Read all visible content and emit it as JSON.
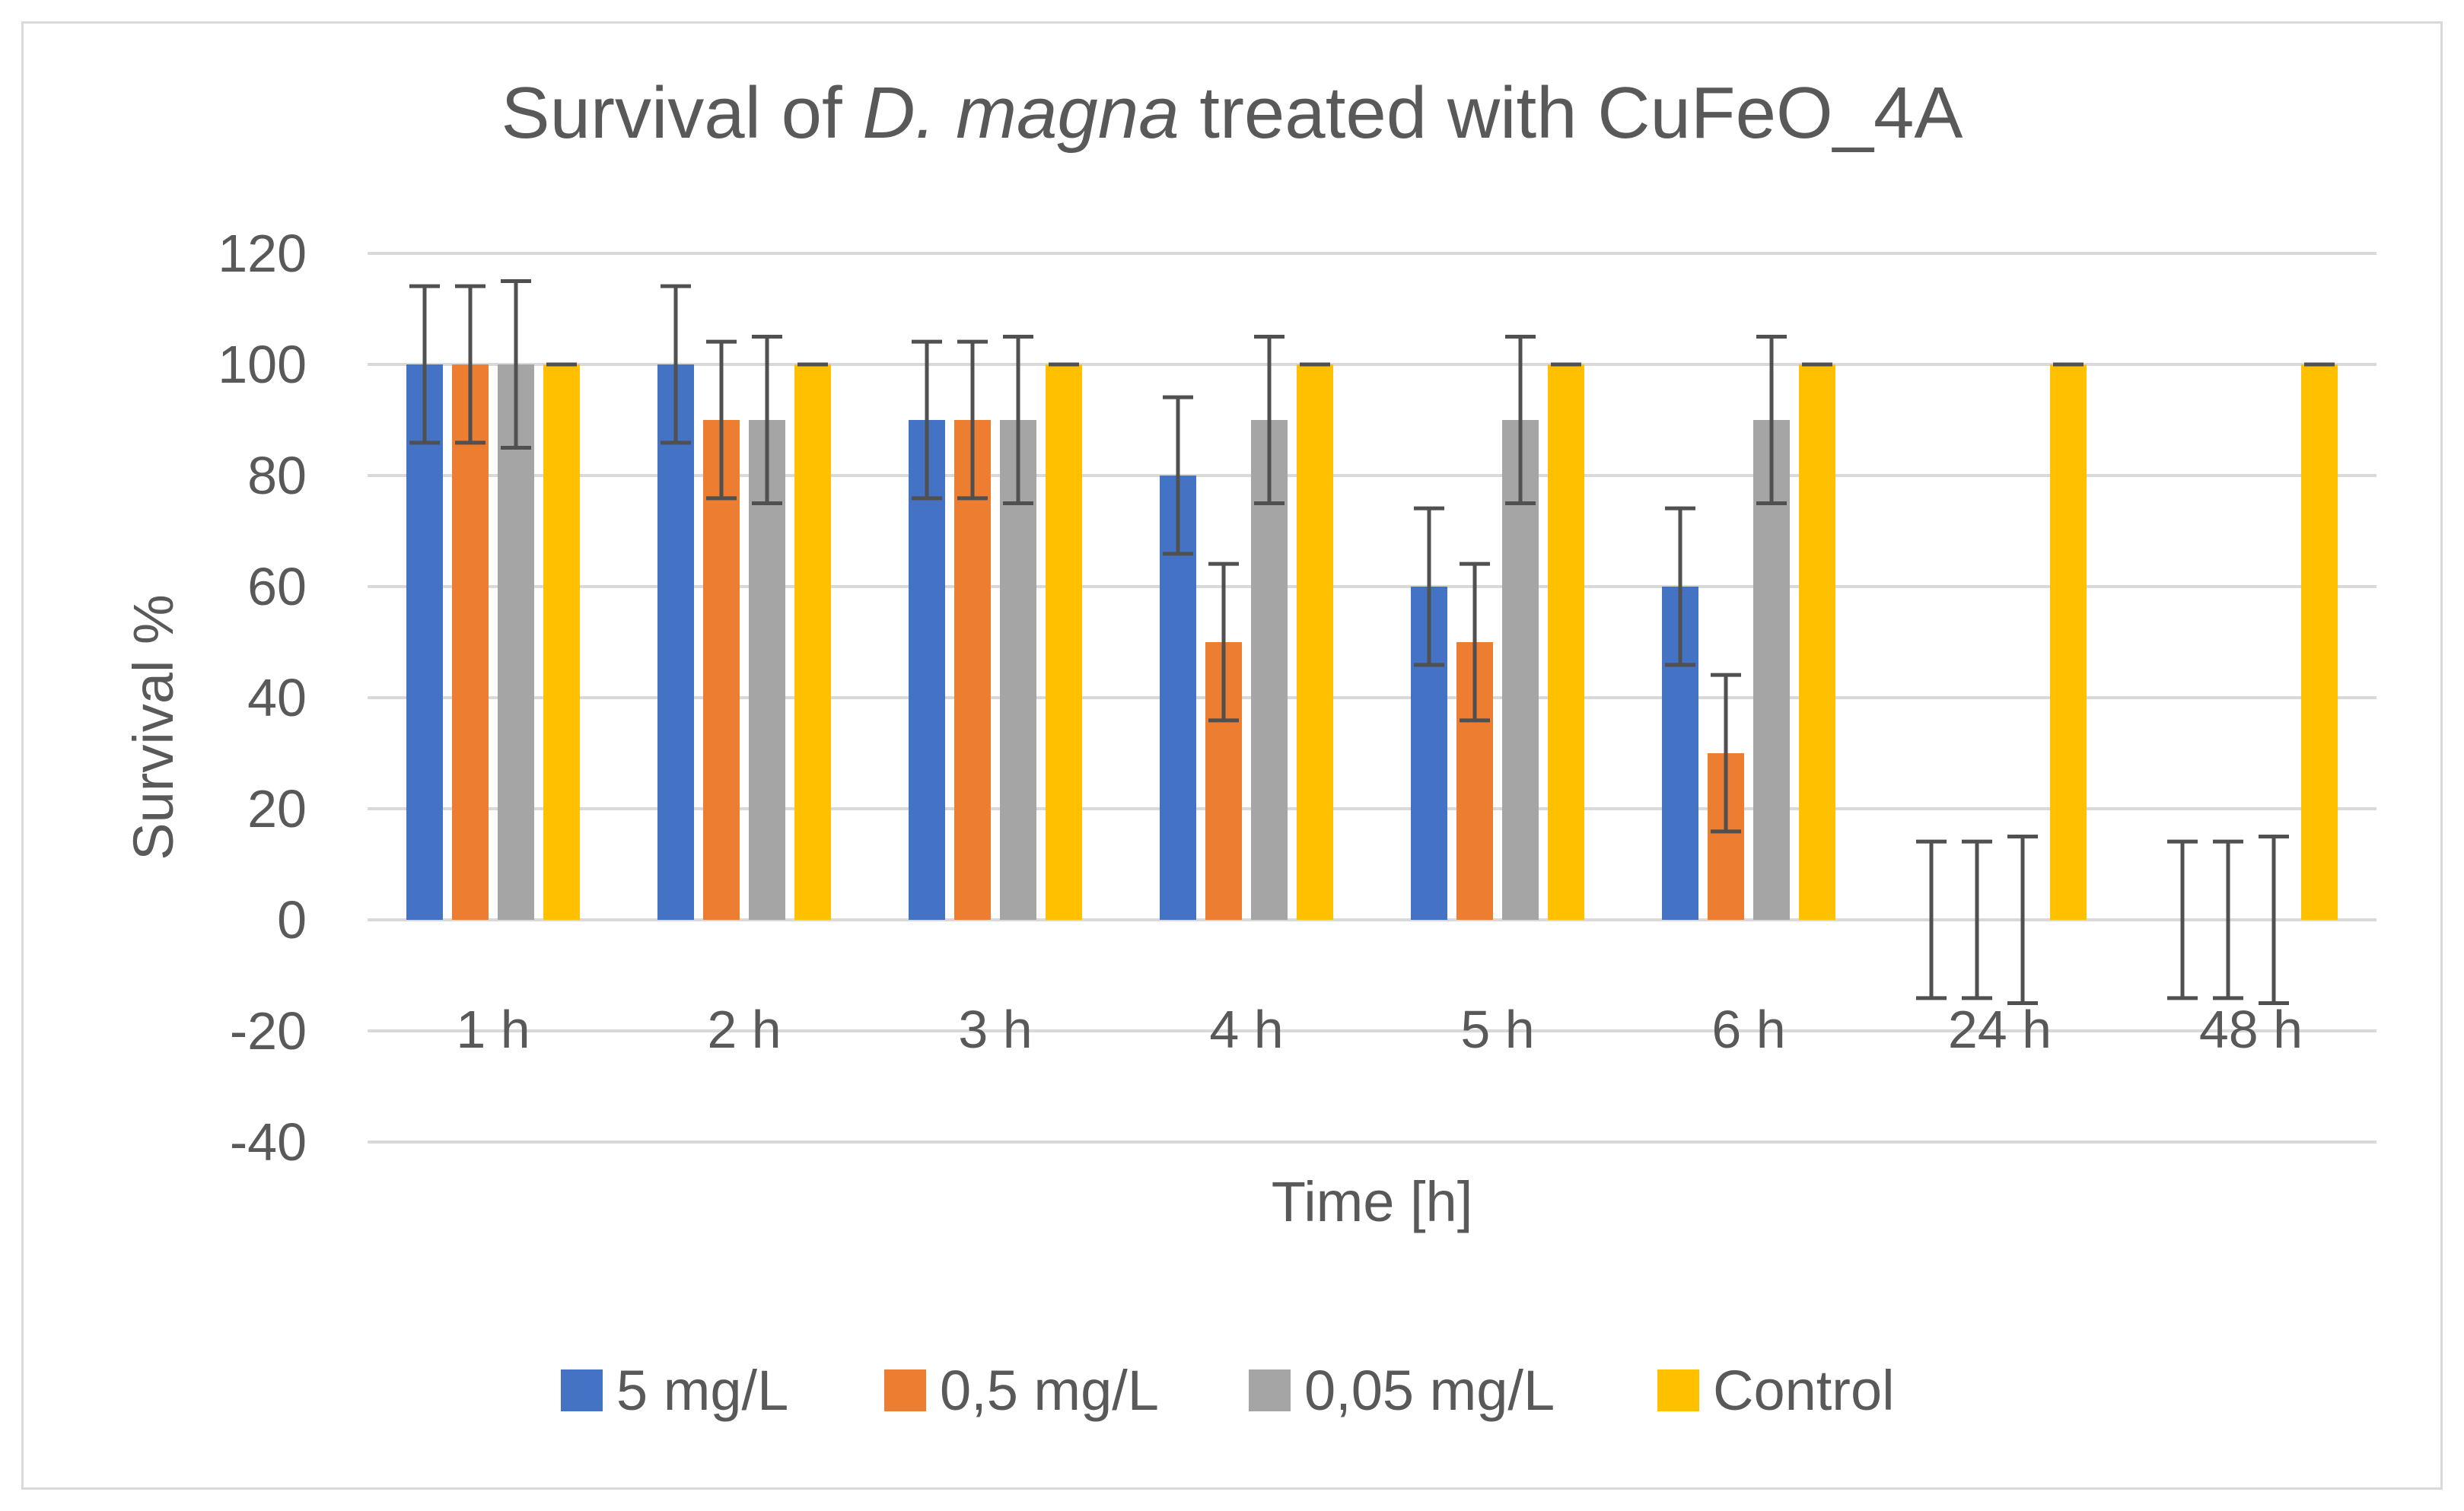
{
  "chart_data": {
    "type": "bar",
    "title": {
      "prefix": "Survival of ",
      "italic": "D. magna",
      "suffix": " treated with CuFeO_4A"
    },
    "xlabel": "Time [h]",
    "ylabel": "Survival %",
    "ylim": [
      -40,
      120
    ],
    "yticks": [
      120,
      100,
      80,
      60,
      40,
      20,
      0,
      -20,
      -40
    ],
    "grid": true,
    "legend_position": "bottom",
    "categories": [
      "1 h",
      "2 h",
      "3 h",
      "4 h",
      "5 h",
      "6 h",
      "24 h",
      "48 h"
    ],
    "series": [
      {
        "name": "5 mg/L",
        "color": "#4472c4",
        "values": [
          100,
          100,
          90,
          80,
          60,
          60,
          0,
          0
        ],
        "error": [
          14.1,
          14.1,
          14.1,
          14.1,
          14.1,
          14.1,
          14.1,
          14.1
        ]
      },
      {
        "name": "0,5 mg/L",
        "color": "#ed7d31",
        "values": [
          100,
          90,
          90,
          50,
          50,
          30,
          0,
          0
        ],
        "error": [
          14.1,
          14.1,
          14.1,
          14.1,
          14.1,
          14.1,
          14.1,
          14.1
        ]
      },
      {
        "name": "0,05 mg/L",
        "color": "#a5a5a5",
        "values": [
          100,
          90,
          90,
          90,
          90,
          90,
          0,
          0
        ],
        "error": [
          15,
          15,
          15,
          15,
          15,
          15,
          15,
          15
        ]
      },
      {
        "name": "Control",
        "color": "#ffc000",
        "values": [
          100,
          100,
          100,
          100,
          100,
          100,
          100,
          100
        ],
        "error": [
          0,
          0,
          0,
          0,
          0,
          0,
          0,
          0
        ]
      }
    ]
  }
}
